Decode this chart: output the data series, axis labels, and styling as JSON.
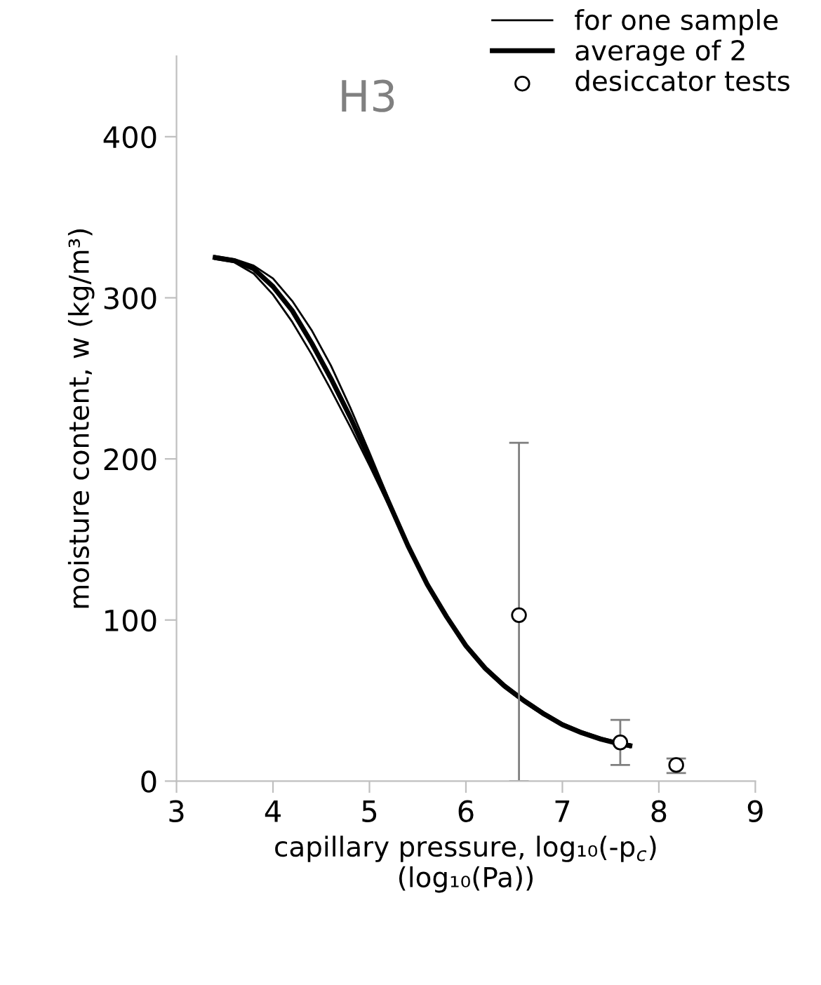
{
  "chart_data": {
    "type": "line",
    "title": "H3",
    "xlabel": "capillary pressure, log₁₀(-p$_{c}$)\n(log₁₀(Pa))",
    "ylabel": "moisture content, w (kg/m³)",
    "xlim": [
      3,
      9
    ],
    "ylim": [
      0,
      450
    ],
    "xticks": [
      3,
      4,
      5,
      6,
      7,
      8,
      9
    ],
    "yticks": [
      0,
      100,
      200,
      300,
      400
    ],
    "grid": false,
    "legend": "top right",
    "series": [
      {
        "name": "for one sample",
        "color": "#000000",
        "x": [
          3.4,
          3.6,
          3.8,
          4.0,
          4.2,
          4.4,
          4.6,
          4.8,
          5.0,
          5.2,
          5.4,
          5.6,
          5.8,
          6.0,
          6.2,
          6.4,
          6.6,
          6.8,
          7.0,
          7.2,
          7.4,
          7.6,
          7.7
        ],
        "values": [
          326,
          324,
          320,
          312,
          298,
          280,
          258,
          232,
          204,
          175,
          147,
          122,
          101,
          83,
          69,
          58,
          49,
          41,
          35,
          30,
          26,
          23,
          21
        ]
      },
      {
        "color": "#000000",
        "x": [
          3.4,
          3.6,
          3.8,
          4.0,
          4.2,
          4.4,
          4.6,
          4.8,
          5.0,
          5.2,
          5.4,
          5.6,
          5.8,
          6.0,
          6.2,
          6.4,
          6.6,
          6.8,
          7.0,
          7.2,
          7.4,
          7.6,
          7.7
        ],
        "values": [
          324,
          322,
          315,
          302,
          285,
          265,
          243,
          220,
          196,
          171,
          145,
          121,
          102,
          85,
          71,
          60,
          51,
          43,
          36,
          31,
          27,
          24,
          23
        ]
      },
      {
        "name": "average of 2",
        "color": "#000000",
        "x": [
          3.4,
          3.6,
          3.8,
          4.0,
          4.2,
          4.4,
          4.6,
          4.8,
          5.0,
          5.2,
          5.4,
          5.6,
          5.8,
          6.0,
          6.2,
          6.4,
          6.6,
          6.8,
          7.0,
          7.2,
          7.4,
          7.6,
          7.7
        ],
        "values": [
          325,
          323,
          318,
          307,
          292,
          272,
          250,
          226,
          200,
          173,
          146,
          122,
          102,
          84,
          70,
          59,
          50,
          42,
          35,
          30,
          26,
          23,
          22
        ]
      },
      {
        "name": "desiccator tests",
        "type": "scatter",
        "color": "#000000",
        "marker": "circle",
        "x": [
          6.55,
          7.6,
          8.18
        ],
        "values": [
          103,
          24,
          10
        ],
        "errors": [
          [
            0,
            210
          ],
          [
            10,
            38
          ],
          [
            5,
            14
          ]
        ]
      }
    ]
  }
}
